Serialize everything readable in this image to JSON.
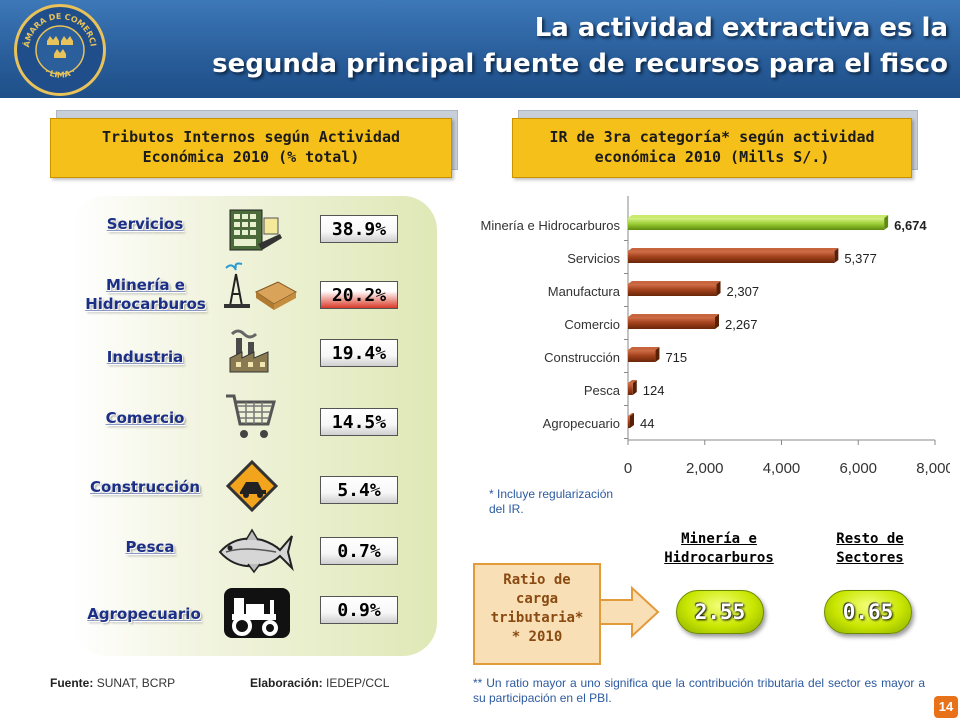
{
  "header": {
    "title_line1": "La actividad extractiva es la",
    "title_line2": "segunda principal fuente de recursos para el fisco",
    "logo_text_top": "CÁMARA DE COMERCIO",
    "logo_text_bottom": "· LIMA ·",
    "logo_icon": "three-crowns-icon"
  },
  "left_banner": {
    "line1": "Tributos Internos según Actividad",
    "line2": "Económica 2010 (% total)"
  },
  "right_banner": {
    "line1": "IR de 3ra categoría* según actividad",
    "line2": "económica 2010 (Mills S/.)"
  },
  "sectors": [
    {
      "label": "Servicios",
      "value": "38.9%",
      "icon": "calculator-icon",
      "style": "white"
    },
    {
      "label_line1": "Minería e",
      "label_line2": "Hidrocarburos",
      "value": "20.2%",
      "icon": "oil-mining-icon",
      "style": "red"
    },
    {
      "label": "Industria",
      "value": "19.4%",
      "icon": "factory-icon",
      "style": "white"
    },
    {
      "label": "Comercio",
      "value": "14.5%",
      "icon": "shopping-cart-icon",
      "style": "white"
    },
    {
      "label": "Construcción",
      "value": "5.4%",
      "icon": "construction-sign-icon",
      "style": "white"
    },
    {
      "label": "Pesca",
      "value": "0.7%",
      "icon": "fish-icon",
      "style": "white"
    },
    {
      "label": "Agropecuario",
      "value": "0.9%",
      "icon": "tractor-icon",
      "style": "white"
    }
  ],
  "source": {
    "fuente_label": "Fuente:",
    "fuente_value": "SUNAT, BCRP",
    "elab_label": "Elaboración:",
    "elab_value": "IEDEP/CCL"
  },
  "chart_data": {
    "type": "bar",
    "orientation": "horizontal",
    "categories": [
      "Minería e Hidrocarburos",
      "Servicios",
      "Manufactura",
      "Comercio",
      "Construcción",
      "Pesca",
      "Agropecuario"
    ],
    "values": [
      6674,
      5377,
      2307,
      2267,
      715,
      124,
      44
    ],
    "value_labels": [
      "6,674",
      "5,377",
      "2,307",
      "2,267",
      "715",
      "124",
      "44"
    ],
    "xlim": [
      0,
      8000
    ],
    "xticks": [
      "0",
      "2,000",
      "4,000",
      "6,000",
      "8,000"
    ],
    "grid": false,
    "colors": {
      "highlight": "#9acd32",
      "default": "#a0401a"
    }
  },
  "notes": {
    "note1_line1": "* Incluye regularización",
    "note1_line2": "del IR.",
    "note2": "** Un ratio mayor a uno significa que la contribución tributaria del sector es mayor a su participación en el PBI."
  },
  "ratio": {
    "box_line1": "Ratio de",
    "box_line2": "carga",
    "box_line3": "tributaria*",
    "box_line4": "* 2010",
    "col1_line1": "Minería e",
    "col1_line2": "Hidrocarburos",
    "col2_line1": "Resto de",
    "col2_line2": "Sectores",
    "value1": "2.55",
    "value2": "0.65"
  },
  "page_number": "14",
  "colors": {
    "header_blue": "#2a5f9c",
    "banner_yellow": "#f6c01a",
    "sector_label_blue": "#1c2f86",
    "highlight_bar": "#9acd32",
    "bar_brown": "#a0401a",
    "ratio_pill": "#c9e600",
    "ratio_box": "#f9dfb5",
    "page_badge": "#e8721a"
  }
}
